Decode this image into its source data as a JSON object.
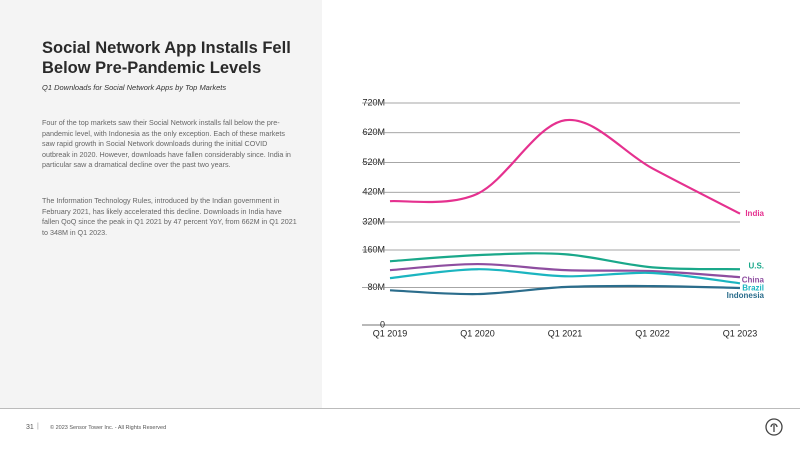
{
  "slide": {
    "title": "Social Network App Installs Fell Below Pre-Pandemic Levels",
    "subtitle": "Q1 Downloads for Social Network Apps by Top Markets",
    "paragraphs": [
      "Four of the top markets saw their Social Network installs fall below the pre-pandemic level, with Indonesia as the only exception. Each of these markets saw rapid growth in Social Network downloads during the initial COVID outbreak in 2020. However, downloads have fallen considerably since. India in particular saw a dramatical decline over the past two years.",
      "The Information Technology Rules, introduced by the Indian government in February 2021, has likely accelerated this decline. Downloads in India have fallen QoQ since the peak in Q1 2021 by 47 percent YoY, from 662M in Q1 2021 to 348M in Q1 2023."
    ],
    "page_number": "31",
    "footer": "© 2023 Sensor Tower Inc. - All Rights Reserved"
  },
  "chart_data": {
    "type": "line",
    "categories": [
      "Q1 2019",
      "Q1 2020",
      "Q1 2021",
      "Q1 2022",
      "Q1 2023"
    ],
    "series": [
      {
        "name": "India",
        "color": "#e5318f",
        "values": [
          390,
          415,
          662,
          500,
          348
        ]
      },
      {
        "name": "U.S.",
        "color": "#1aa88a",
        "values": [
          136,
          149,
          151,
          123,
          119
        ]
      },
      {
        "name": "China",
        "color": "#8e4ea0",
        "values": [
          117,
          130,
          117,
          115,
          102
        ]
      },
      {
        "name": "Brazil",
        "color": "#1bb5c0",
        "values": [
          100,
          119,
          104,
          111,
          89
        ]
      },
      {
        "name": "Indonesia",
        "color": "#2b6d8c",
        "values": [
          74,
          66,
          81,
          83,
          79
        ]
      }
    ],
    "ylim": [
      0,
      720
    ],
    "y_break": [
      160,
      320
    ],
    "yticks": [
      0,
      {
        "value": 80,
        "label": "80M"
      },
      {
        "value": 160,
        "label": "160M"
      },
      {
        "value": 320,
        "label": "320M"
      },
      {
        "value": 420,
        "label": "420M"
      },
      {
        "value": 520,
        "label": "520M"
      },
      {
        "value": 620,
        "label": "620M"
      },
      {
        "value": 720,
        "label": "720M"
      }
    ],
    "grid": true
  }
}
